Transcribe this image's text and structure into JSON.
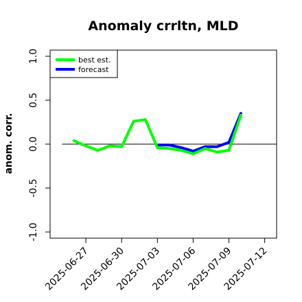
{
  "chart_data": {
    "type": "line",
    "title": "Anomaly crrltn, MLD",
    "xlabel": "",
    "ylabel": "anom. corr.",
    "ylim": [
      -1.0,
      1.0
    ],
    "yticks": [
      -1.0,
      -0.5,
      0.0,
      0.5,
      1.0
    ],
    "ytick_labels": [
      "-1.0",
      "-0.5",
      "0.0",
      "0.5",
      "1.0"
    ],
    "xlim": [
      "2025-06-24",
      "2025-07-13"
    ],
    "xticks": [
      {
        "date": "2025-06-27",
        "label": "2025-06-27",
        "color": "#000000"
      },
      {
        "date": "2025-06-30",
        "label": "2025-06-30",
        "color": "#000000"
      },
      {
        "date": "2025-07-03",
        "label": "2025-07-03",
        "color": "#228b22"
      },
      {
        "date": "2025-07-06",
        "label": "2025-07-06",
        "color": "#000000"
      },
      {
        "date": "2025-07-09",
        "label": "2025-07-09",
        "color": "#000000"
      },
      {
        "date": "2025-07-12",
        "label": "2025-07-12",
        "color": "#000000"
      }
    ],
    "reference_line": 0.0,
    "legend_position": "top-left",
    "series": [
      {
        "name": "forecast",
        "color": "#0000ff",
        "x": [
          "2025-07-03",
          "2025-07-04",
          "2025-07-05",
          "2025-07-06",
          "2025-07-07",
          "2025-07-08",
          "2025-07-09",
          "2025-07-10"
        ],
        "y": [
          -0.01,
          -0.01,
          -0.04,
          -0.08,
          -0.03,
          -0.03,
          0.02,
          0.35
        ]
      },
      {
        "name": "best est.",
        "color": "#00ff00",
        "x": [
          "2025-06-26",
          "2025-06-27",
          "2025-06-28",
          "2025-06-29",
          "2025-06-30",
          "2025-07-01",
          "2025-07-02",
          "2025-07-03",
          "2025-07-04",
          "2025-07-05",
          "2025-07-06",
          "2025-07-07",
          "2025-07-08",
          "2025-07-09",
          "2025-07-10"
        ],
        "y": [
          0.04,
          -0.02,
          -0.07,
          -0.02,
          -0.03,
          0.26,
          0.28,
          -0.04,
          -0.05,
          -0.07,
          -0.11,
          -0.05,
          -0.09,
          -0.07,
          0.33
        ]
      }
    ],
    "legend": [
      {
        "name": "best est.",
        "color": "#00ff00"
      },
      {
        "name": "forecast",
        "color": "#0000ff"
      }
    ]
  }
}
